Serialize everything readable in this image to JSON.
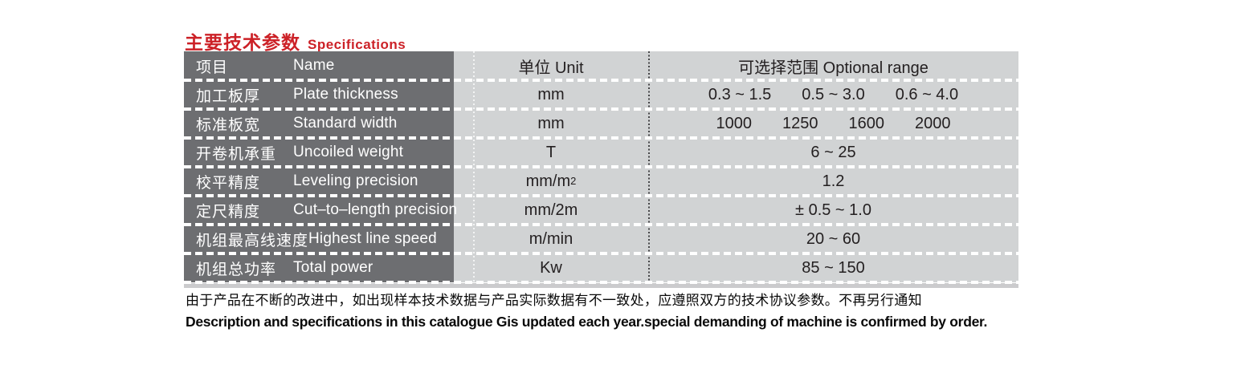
{
  "title": {
    "cn": "主要技术参数",
    "en": "Specifications",
    "color": "#cc2127"
  },
  "table": {
    "header": {
      "name_cn": "项目",
      "name_en": "Name",
      "unit": "单位 Unit",
      "range": "可选择范围 Optional range"
    },
    "rows": [
      {
        "name_cn": "加工板厚",
        "name_en": "Plate thickness",
        "unit": "mm",
        "values": [
          "0.3 ~ 1.5",
          "0.5 ~ 3.0",
          "0.6 ~ 4.0"
        ]
      },
      {
        "name_cn": "标准板宽",
        "name_en": "Standard width",
        "unit": "mm",
        "values": [
          "1000",
          "1250",
          "1600",
          "2000"
        ]
      },
      {
        "name_cn": "开卷机承重",
        "name_en": "Uncoiled weight",
        "unit": "T",
        "values": [
          "6 ~ 25"
        ]
      },
      {
        "name_cn": "校平精度",
        "name_en": "Leveling precision",
        "unit": "mm/m",
        "unit_sup": "2",
        "values": [
          "1.2"
        ]
      },
      {
        "name_cn": "定尺精度",
        "name_en": "Cut–to–length precision",
        "unit": "mm/2m",
        "values": [
          "± 0.5 ~ 1.0"
        ]
      },
      {
        "name_cn": "机组最高线速度",
        "name_en": "Highest line speed",
        "unit": "m/min",
        "values": [
          "20 ~ 60"
        ]
      },
      {
        "name_cn": "机组总功率",
        "name_en": "Total power",
        "unit": "Kw",
        "values": [
          "85 ~ 150"
        ]
      }
    ],
    "colors": {
      "name_col_bg": "#6d6e71",
      "cell_bg": "#d1d3d4",
      "text_dark": "#231f20",
      "text_light": "#ffffff"
    }
  },
  "footer": {
    "cn": "由于产品在不断的改进中，如出现样本技术数据与产品实际数据有不一致处，应遵照双方的技术协议参数。不再另行通知",
    "en": "Description and specifications in this catalogue Gis updated each year.special demanding of machine is confirmed by order."
  }
}
